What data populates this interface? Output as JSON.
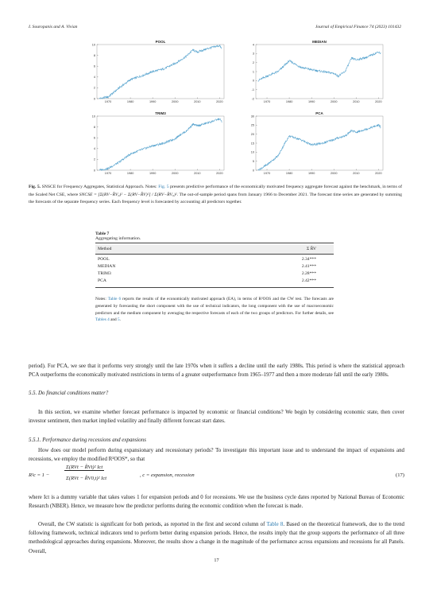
{
  "header": {
    "left": "I. Souropanis and A. Vivian",
    "right": "Journal of Empirical Finance 74 (2023) 101432"
  },
  "chart_data": [
    {
      "type": "line",
      "title": "POOL",
      "xlim": [
        1965,
        2022
      ],
      "ylim": [
        0,
        10
      ],
      "xticks": [
        "1970",
        "1980",
        "1990",
        "2000",
        "2010",
        "2020"
      ],
      "yticks": [
        "0",
        "2",
        "4",
        "6",
        "8",
        "10"
      ],
      "x": [
        1966,
        1970,
        1975,
        1980,
        1985,
        1990,
        1995,
        2000,
        2002,
        2005,
        2008,
        2010,
        2015,
        2020,
        2021
      ],
      "y": [
        0,
        0.3,
        2.0,
        3.5,
        4.2,
        5.0,
        5.5,
        6.5,
        7.0,
        7.8,
        9.0,
        8.6,
        9.3,
        9.8,
        9.2
      ]
    },
    {
      "type": "line",
      "title": "MEDIAN",
      "xlim": [
        1965,
        2022
      ],
      "ylim": [
        -2,
        4
      ],
      "xticks": [
        "1970",
        "1980",
        "1990",
        "2000",
        "2010",
        "2020"
      ],
      "yticks": [
        "-2",
        "-1",
        "0",
        "1",
        "2",
        "3",
        "4"
      ],
      "x": [
        1966,
        1970,
        1975,
        1980,
        1985,
        1990,
        1995,
        2000,
        2002,
        2005,
        2008,
        2010,
        2015,
        2020,
        2021
      ],
      "y": [
        0,
        0.5,
        1.0,
        2.2,
        1.5,
        1.2,
        1.0,
        0.8,
        0.5,
        1.0,
        2.5,
        2.3,
        2.6,
        3.2,
        3.0
      ]
    },
    {
      "type": "line",
      "title": "TRIM3",
      "xlim": [
        1965,
        2022
      ],
      "ylim": [
        0,
        10
      ],
      "xticks": [
        "1970",
        "1980",
        "1990",
        "2000",
        "2010",
        "2020"
      ],
      "yticks": [
        "0",
        "2",
        "4",
        "6",
        "8",
        "10"
      ],
      "x": [
        1966,
        1970,
        1975,
        1980,
        1985,
        1990,
        1995,
        2000,
        2002,
        2005,
        2008,
        2010,
        2015,
        2020,
        2021
      ],
      "y": [
        0,
        0.3,
        1.5,
        3.0,
        3.8,
        4.5,
        5.0,
        5.8,
        6.5,
        7.2,
        8.5,
        8.2,
        8.8,
        9.5,
        9.0
      ]
    },
    {
      "type": "line",
      "title": "PCA",
      "xlim": [
        1965,
        2022
      ],
      "ylim": [
        0,
        30
      ],
      "xticks": [
        "1970",
        "1980",
        "1990",
        "2000",
        "2010",
        "2020"
      ],
      "yticks": [
        "0",
        "5",
        "10",
        "15",
        "20",
        "25",
        "30"
      ],
      "x": [
        1966,
        1970,
        1975,
        1978,
        1980,
        1985,
        1990,
        1995,
        2000,
        2002,
        2005,
        2008,
        2010,
        2015,
        2020,
        2021
      ],
      "y": [
        0,
        3,
        8,
        15,
        19,
        17,
        14,
        15,
        17,
        18,
        19,
        22,
        21,
        23,
        25,
        24
      ]
    }
  ],
  "figure_caption": {
    "label": "Fig. 5.",
    "text_a": "SNSCE for Frequency Aggregates, Statistical Approach. Notes:",
    "ref_a": "Fig. 5",
    "text_b": "presents predictive performance of the economically motivated frequency aggregate forecast against the benchmark, in terms of the Scaled Net CSE, where",
    "formula": "SNCSE = [Σ(RV−R̂V₀)² − Σ(RV−R̂V)²] / Σ(RV−R̄V₀)²",
    "text_c": ". The out-of-sample period spans from January 1966 to December 2021. The forecast time series are generated by summing the forecasts of the separate frequency series. Each frequency level is forecasted by accounting all predictors together."
  },
  "table": {
    "label": "Table 7",
    "title": "Aggregating information.",
    "col_method": "Method",
    "col_value": "Σ R̂V",
    "rows": [
      {
        "method": "POOL",
        "value": "2.34***"
      },
      {
        "method": "MEDIAN",
        "value": "2.41***"
      },
      {
        "method": "TRIM3",
        "value": "2.28***"
      },
      {
        "method": "PCA",
        "value": "2.42***"
      }
    ],
    "note_a": "Notes:",
    "note_ref1": "Table 6",
    "note_b": "reports the results of the economically motivated approach (EA), in terms of R²OOS and the CW test. The forecasts are generated by forecasting the short component with the use of technical indicators, the long component with the use of macroeconomic predictors and the medium component by averaging the respective forecasts of each of the two groups of predictors. For further details, see",
    "note_ref2": "Tables 4",
    "note_c": "and",
    "note_ref3": "5",
    "note_d": "."
  },
  "para1": "period). For PCA, we see that it performs very strongly until the late 1970s when it suffers a decline until the early 1980s. This period is where the statistical approach PCA outperforms the economically motivated restrictions in terms of a greater outperformance from 1965–1977 and then a more moderate fall until the early 1980s.",
  "section_55": "5.5.  Do financial conditions matter?",
  "para2": "In this section, we examine whether forecast performance is impacted by economic or financial conditions? We begin by considering economic state, then cover investor sentiment, then market implied volatility and finally different forecast start dates.",
  "section_551": "5.5.1.  Performance during recessions and expansions",
  "para3": "How does our model perform during expansionary and recessionary periods? To investigate this important issue and to understand the impact of expansions and recessions, we employ the modified R²OOS*, so that",
  "equation": {
    "lhs": "R²c = 1 −",
    "numerator": "Σ(RVt − R̂Vt)² Ict",
    "denominator": "Σ(RVt − R̂V0,t)² Ict",
    "condition": ", c = expansion, recession",
    "number": "(17)"
  },
  "para4": "where Ict is a dummy variable that takes values 1 for expansion periods and 0 for recessions. We use the business cycle dates reported by National Bureau of Economic Research (NBER). Hence, we measure how the predictor performs during the economic condition when the forecast is made.",
  "para5_a": "Overall, the CW statistic is significant for both periods, as reported in the first and second column of",
  "para5_ref": "Table 8",
  "para5_b": ". Based on the theoretical framework, due to the trend following framework, technical indicators tend to perform better during expansion periods. Hence, the results imply that the group supports the performance of all three methodological approaches during expansions. Moreover, the results show a change in the magnitude of the performance across expansions and recessions for all Panels. Overall,",
  "page_number": "17",
  "colors": {
    "line": "#5aa5cf",
    "link": "#2a7ab0"
  }
}
